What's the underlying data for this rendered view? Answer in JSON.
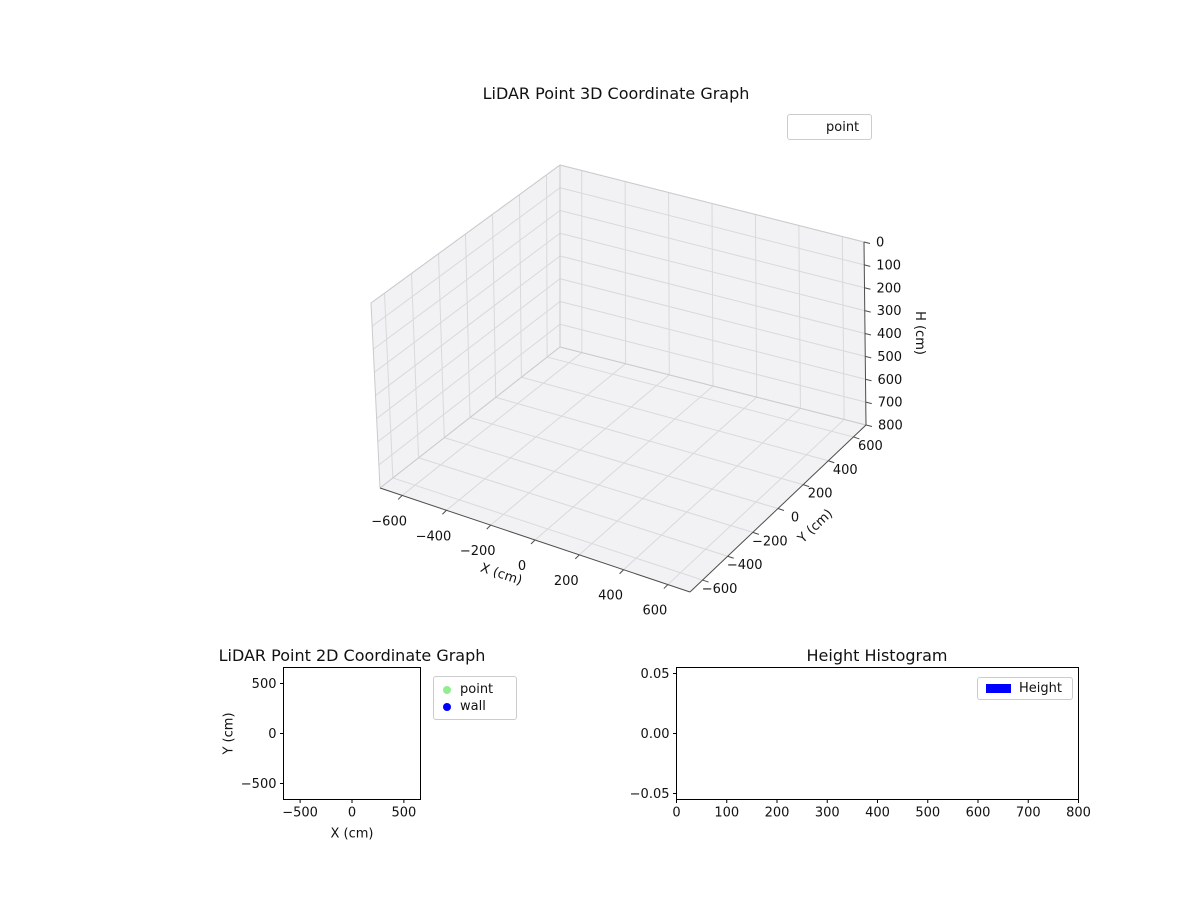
{
  "figure": {
    "background": "#ffffff"
  },
  "chart_data": [
    {
      "id": "plot3d",
      "type": "scatter3d",
      "title": "LiDAR Point 3D Coordinate Graph",
      "xlabel": "X (cm)",
      "ylabel": "Y (cm)",
      "zlabel": "H (cm)",
      "xlim": [
        -700,
        700
      ],
      "ylim": [
        -700,
        700
      ],
      "zlim": [
        0,
        800
      ],
      "z_axis_inverted": true,
      "grid": true,
      "x_ticks": [
        -600,
        -400,
        -200,
        0,
        200,
        400,
        600
      ],
      "x_tick_labels": [
        "−600",
        "−400",
        "−200",
        "0",
        "200",
        "400",
        "600"
      ],
      "y_ticks": [
        -600,
        -400,
        -200,
        0,
        200,
        400,
        600
      ],
      "y_tick_labels": [
        "−600",
        "−400",
        "−200",
        "0",
        "200",
        "400",
        "600"
      ],
      "z_ticks": [
        0,
        100,
        200,
        300,
        400,
        500,
        600,
        700,
        800
      ],
      "z_tick_labels": [
        "0",
        "100",
        "200",
        "300",
        "400",
        "500",
        "600",
        "700",
        "800"
      ],
      "legend": {
        "position": "upper right",
        "entries": [
          {
            "label": "point",
            "marker": "none",
            "color": null
          }
        ]
      },
      "series": [
        {
          "name": "point",
          "points": []
        }
      ]
    },
    {
      "id": "plot2d",
      "type": "scatter",
      "title": "LiDAR Point 2D Coordinate Graph",
      "xlabel": "X (cm)",
      "ylabel": "Y (cm)",
      "xlim": [
        -660,
        660
      ],
      "ylim": [
        -660,
        660
      ],
      "grid": false,
      "x_ticks": [
        -500,
        0,
        500
      ],
      "x_tick_labels": [
        "−500",
        "0",
        "500"
      ],
      "y_ticks": [
        -500,
        0,
        500
      ],
      "y_tick_labels": [
        "−500",
        "0",
        "500"
      ],
      "legend": {
        "position": "outside upper right",
        "entries": [
          {
            "label": "point",
            "marker": "circle",
            "color": "#90ee90"
          },
          {
            "label": "wall",
            "marker": "circle",
            "color": "#0000ff"
          }
        ]
      },
      "series": [
        {
          "name": "point",
          "points": []
        },
        {
          "name": "wall",
          "points": []
        }
      ]
    },
    {
      "id": "hist",
      "type": "bar",
      "title": "Height Histogram",
      "xlabel": "",
      "ylabel": "",
      "xlim": [
        0,
        800
      ],
      "ylim": [
        -0.055,
        0.055
      ],
      "grid": false,
      "x_ticks": [
        0,
        100,
        200,
        300,
        400,
        500,
        600,
        700,
        800
      ],
      "x_tick_labels": [
        "0",
        "100",
        "200",
        "300",
        "400",
        "500",
        "600",
        "700",
        "800"
      ],
      "y_ticks": [
        -0.05,
        0,
        0.05
      ],
      "y_tick_labels": [
        "−0.05",
        "0.00",
        "0.05"
      ],
      "legend": {
        "position": "upper right",
        "entries": [
          {
            "label": "Height",
            "marker": "rect",
            "color": "#0000ff"
          }
        ]
      },
      "values": []
    }
  ]
}
